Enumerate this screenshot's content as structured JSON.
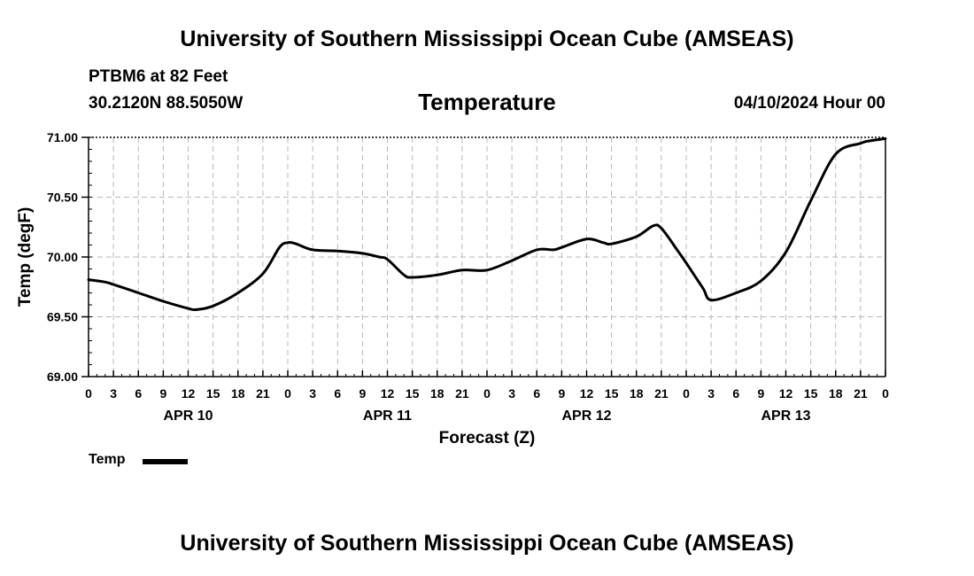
{
  "header": {
    "title": "University of Southern Mississippi Ocean Cube (AMSEAS)",
    "station": "PTBM6 at 82 Feet",
    "coords": "30.2120N  88.5050W",
    "run": "04/10/2024 Hour 00"
  },
  "footer": {
    "title": "University of Southern Mississippi Ocean Cube (AMSEAS)"
  },
  "chart_data": {
    "type": "line",
    "title": "Temperature",
    "xlabel": "Forecast (Z)",
    "ylabel": "Temp (degF)",
    "ylim": [
      69.0,
      71.0
    ],
    "y_ticks": [
      "69.00",
      "69.50",
      "70.00",
      "70.50",
      "71.00"
    ],
    "x_range_hours": [
      0,
      96
    ],
    "x_tick_labels": [
      "0",
      "3",
      "6",
      "9",
      "12",
      "15",
      "18",
      "21",
      "0",
      "3",
      "6",
      "9",
      "12",
      "15",
      "18",
      "21",
      "0",
      "3",
      "6",
      "9",
      "12",
      "15",
      "18",
      "21",
      "0",
      "3",
      "6",
      "9",
      "12",
      "15",
      "18",
      "21",
      "0"
    ],
    "day_labels": [
      {
        "label": "APR 10",
        "hour": 12
      },
      {
        "label": "APR 11",
        "hour": 36
      },
      {
        "label": "APR 12",
        "hour": 60
      },
      {
        "label": "APR 13",
        "hour": 84
      }
    ],
    "grid": true,
    "legend": "bottom-left",
    "series": [
      {
        "name": "Temp",
        "color": "#000000",
        "x": [
          0,
          2,
          3,
          6,
          9,
          12,
          13,
          15,
          18,
          21,
          23,
          24,
          25,
          27,
          30,
          33,
          35,
          36,
          38,
          39,
          42,
          45,
          48,
          51,
          54,
          56,
          57,
          60,
          62,
          63,
          66,
          68,
          69,
          71,
          72,
          74,
          75,
          78,
          81,
          84,
          87,
          90,
          93,
          94,
          96
        ],
        "values": [
          69.81,
          69.79,
          69.77,
          69.7,
          69.63,
          69.57,
          69.56,
          69.59,
          69.7,
          69.86,
          70.08,
          70.12,
          70.11,
          70.06,
          70.05,
          70.03,
          70.0,
          69.98,
          69.85,
          69.83,
          69.85,
          69.89,
          69.89,
          69.97,
          70.06,
          70.06,
          70.08,
          70.15,
          70.12,
          70.11,
          70.17,
          70.26,
          70.24,
          70.05,
          69.95,
          69.74,
          69.64,
          69.7,
          69.8,
          70.04,
          70.47,
          70.86,
          70.95,
          70.97,
          70.99
        ]
      }
    ]
  }
}
